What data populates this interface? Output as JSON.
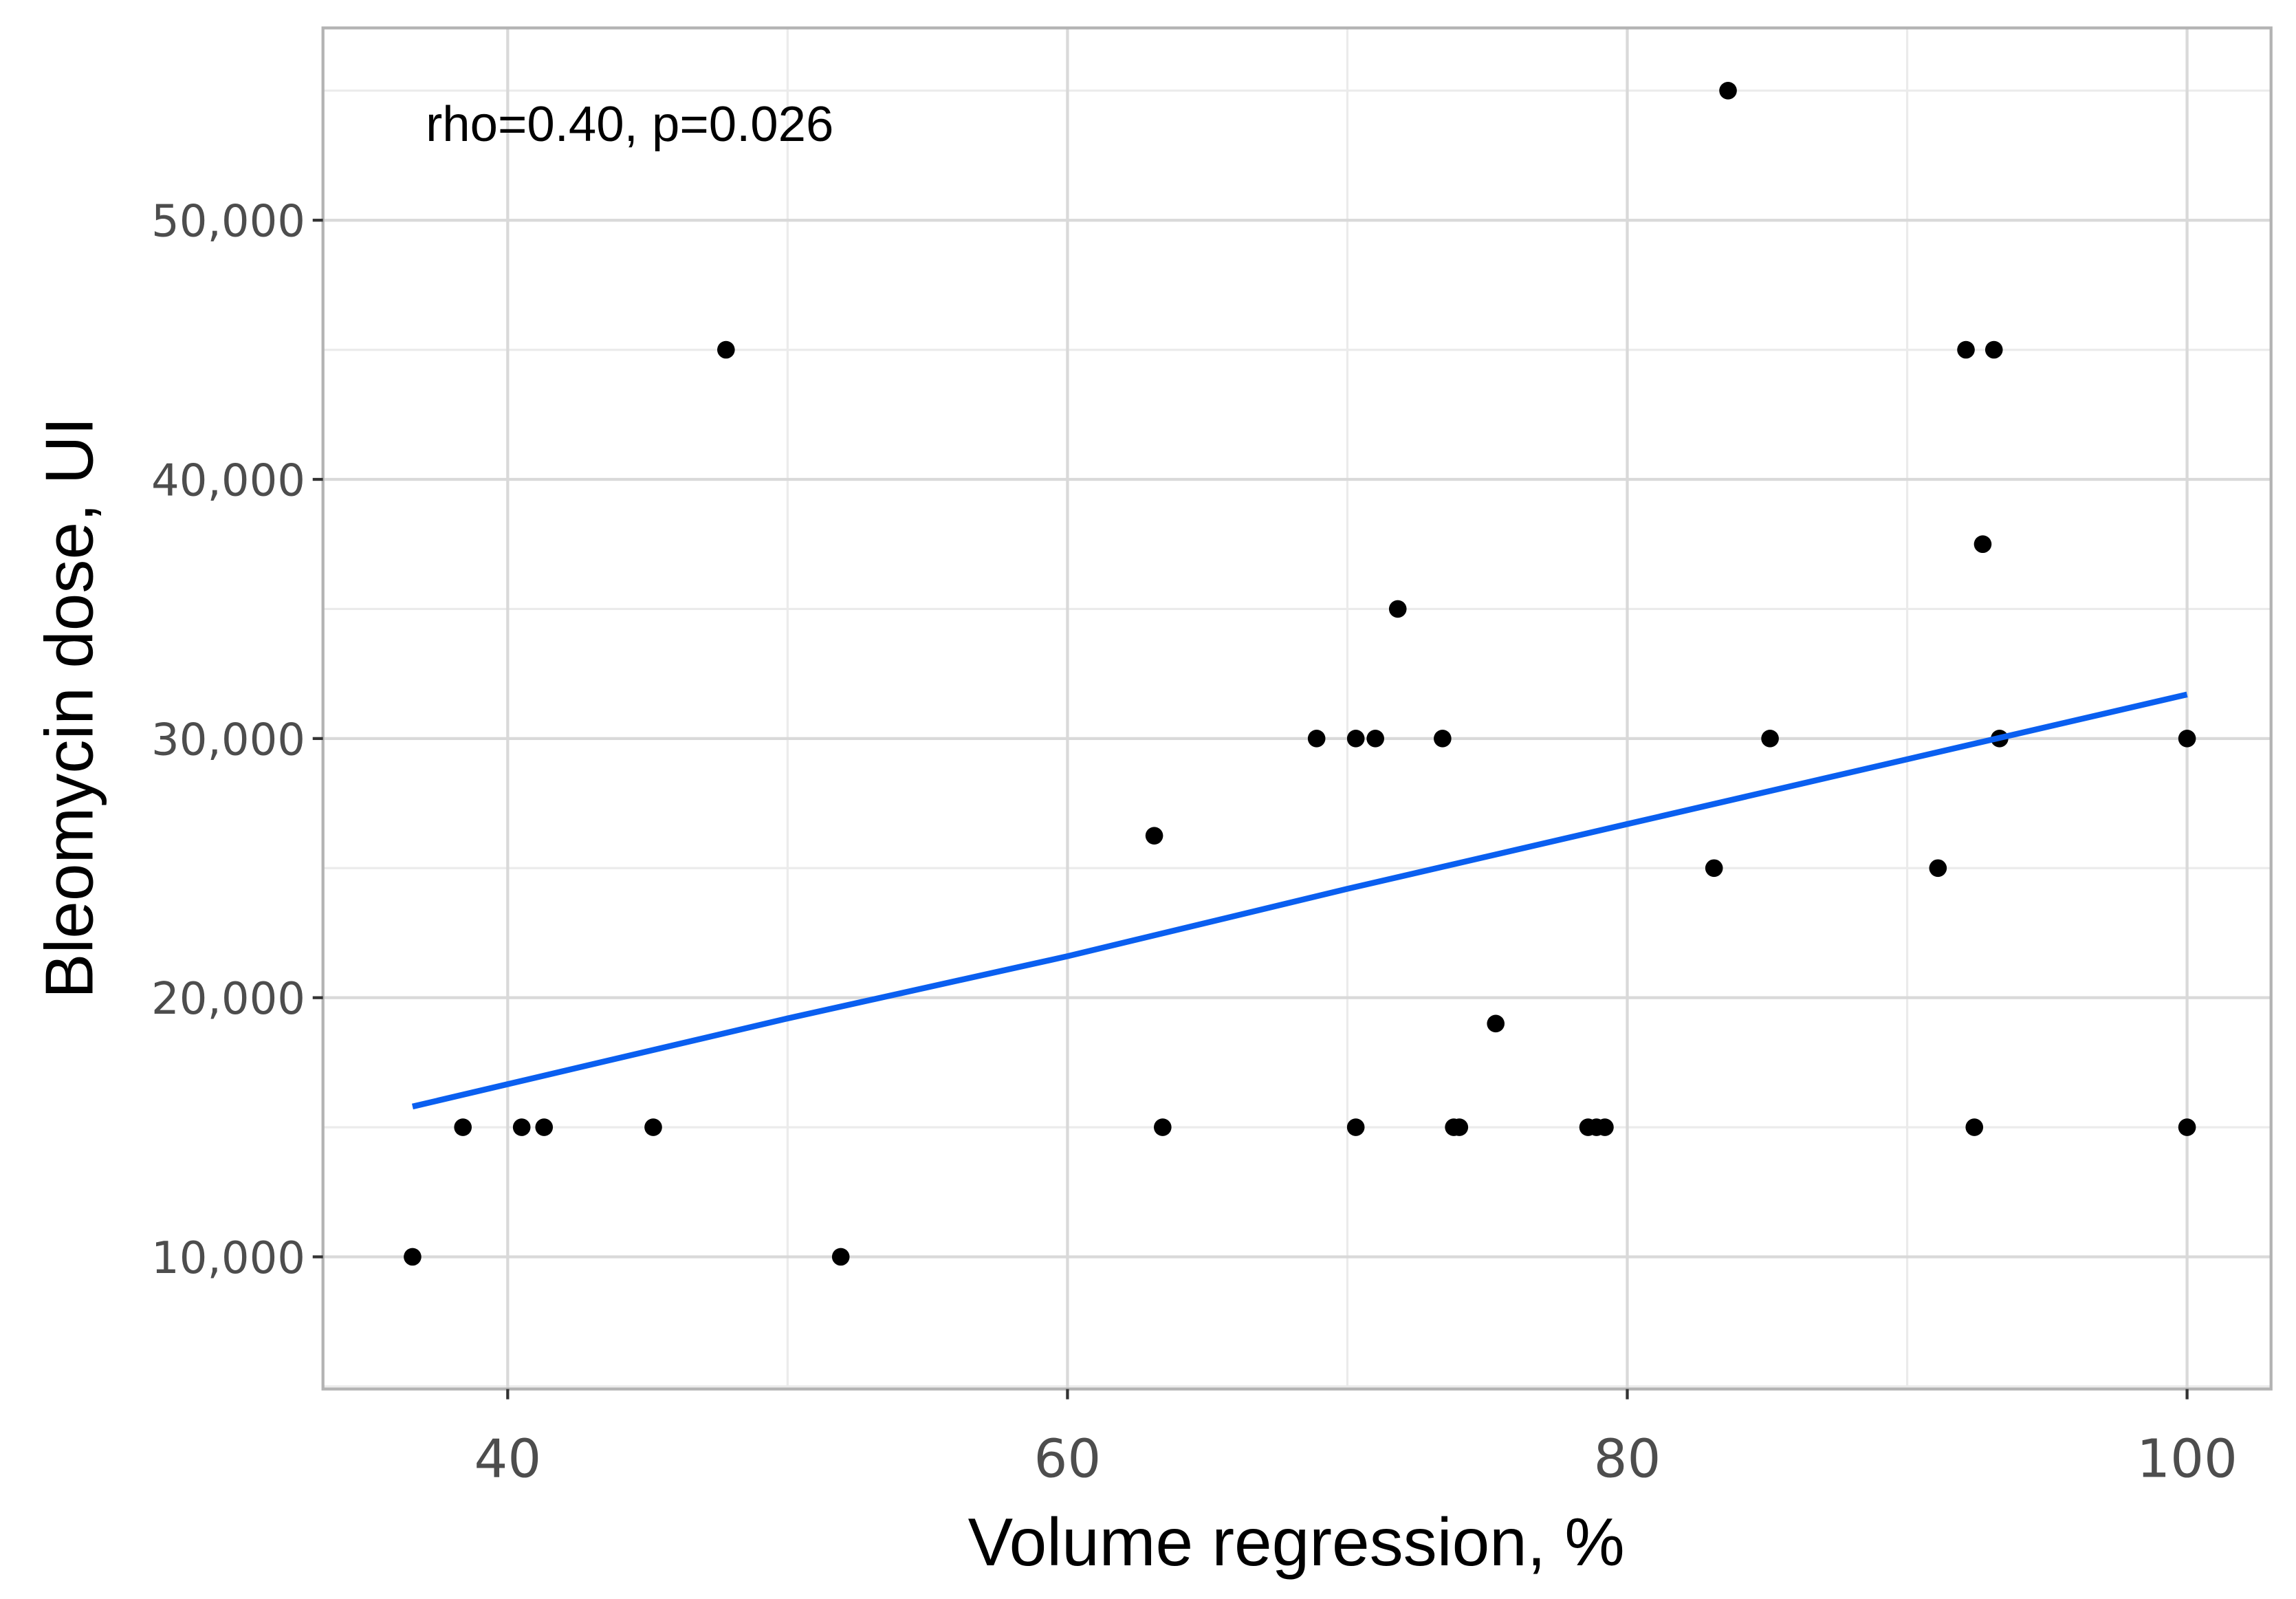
{
  "chart_data": {
    "type": "scatter",
    "annotation": "rho=0.40, p=0.026",
    "xlabel": "Volume regression, %",
    "ylabel": "Bleomycin dose, UI",
    "xlim": [
      33.4,
      103.0
    ],
    "ylim": [
      4900,
      57420
    ],
    "xticks": [
      40,
      60,
      80,
      100
    ],
    "yticks": [
      {
        "value": 10000,
        "label": "10,000"
      },
      {
        "value": 20000,
        "label": "20,000"
      },
      {
        "value": 30000,
        "label": "30,000"
      },
      {
        "value": 40000,
        "label": "40,000"
      },
      {
        "value": 50000,
        "label": "50,000"
      }
    ],
    "grid": true,
    "series": [
      {
        "color": "#000000",
        "x": [
          36.6,
          38.4,
          40.5,
          41.3,
          45.2,
          47.8,
          51.9,
          63.1,
          63.4,
          68.9,
          70.3,
          70.3,
          71.0,
          71.8,
          73.4,
          73.8,
          74.0,
          75.3,
          78.6,
          78.9,
          79.2,
          83.1,
          83.6,
          85.1,
          91.1,
          92.1,
          92.4,
          92.7,
          93.1,
          93.3,
          100,
          100
        ],
        "values": [
          10000,
          15000,
          15000,
          15000,
          15000,
          45000,
          10000,
          26250,
          15000,
          30000,
          30000,
          15000,
          30000,
          35000,
          30000,
          15000,
          15000,
          19000,
          15000,
          15000,
          15000,
          25000,
          55000,
          30000,
          25000,
          45000,
          15000,
          37500,
          45000,
          30000,
          30000,
          15000
        ]
      },
      {
        "type": "line",
        "color": "#0a5ff0",
        "x": [
          36.6,
          50,
          60,
          70,
          80,
          90,
          100
        ],
        "values": [
          15800,
          19200,
          21600,
          24200,
          26700,
          29200,
          31700
        ]
      }
    ]
  }
}
